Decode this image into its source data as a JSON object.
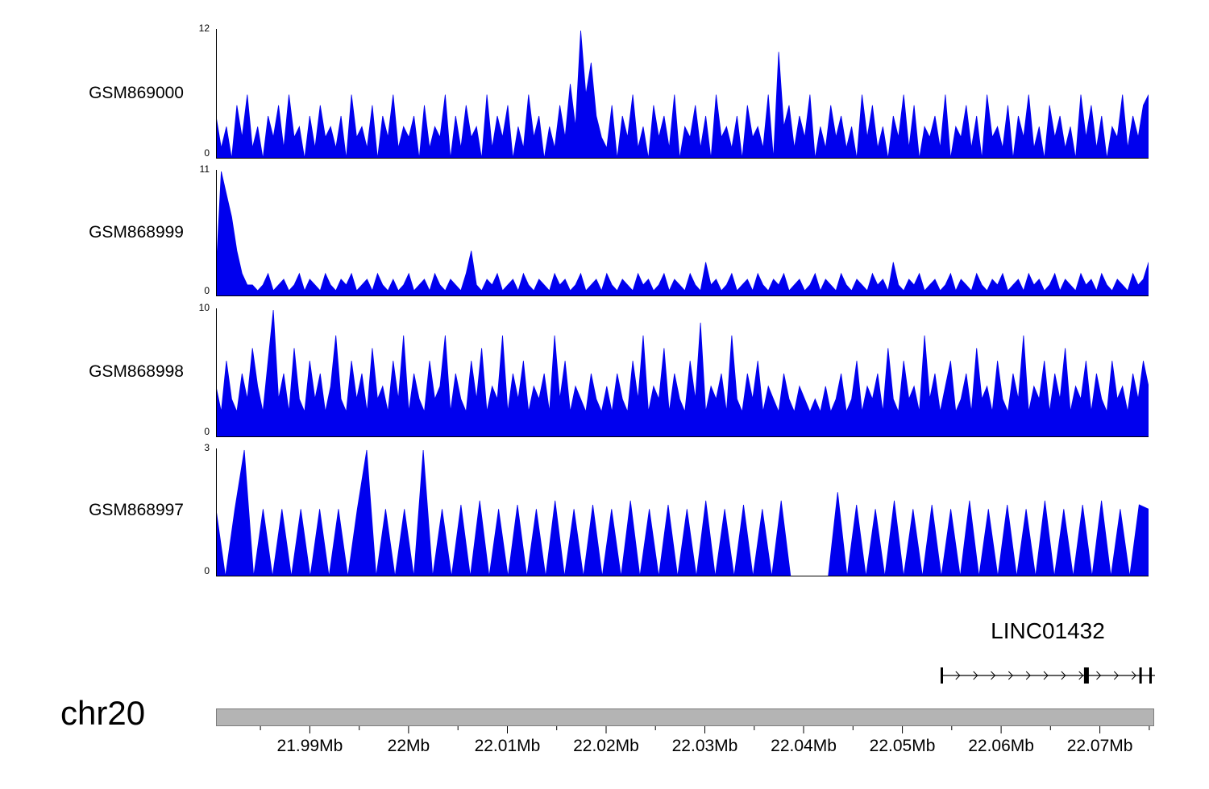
{
  "chart_data": {
    "type": "area",
    "title": "",
    "x_axis_unit": "Mb",
    "x_domain_mb": [
      21.9805,
      22.0755
    ],
    "minor_tick_step_mb": 0.005,
    "fill_color": "#0000ee",
    "axis_color": "#000000",
    "x_ticks": [
      {
        "value": 21.99,
        "label": "21.99Mb"
      },
      {
        "value": 22.0,
        "label": "22Mb"
      },
      {
        "value": 22.01,
        "label": "22.01Mb"
      },
      {
        "value": 22.02,
        "label": "22.02Mb"
      },
      {
        "value": 22.03,
        "label": "22.03Mb"
      },
      {
        "value": 22.04,
        "label": "22.04Mb"
      },
      {
        "value": 22.05,
        "label": "22.05Mb"
      },
      {
        "value": 22.06,
        "label": "22.06Mb"
      },
      {
        "value": 22.07,
        "label": "22.07Mb"
      }
    ],
    "tracks": [
      {
        "name": "GSM869000",
        "ymin": 0,
        "ymax": 12,
        "values": [
          4,
          1,
          3,
          0,
          5,
          2,
          6,
          1,
          3,
          0,
          4,
          2,
          5,
          1,
          6,
          2,
          3,
          0,
          4,
          1,
          5,
          2,
          3,
          1,
          4,
          0,
          6,
          2,
          3,
          1,
          5,
          0,
          4,
          2,
          6,
          1,
          3,
          2,
          4,
          0,
          5,
          1,
          3,
          2,
          6,
          0,
          4,
          1,
          5,
          2,
          3,
          0,
          6,
          1,
          4,
          2,
          5,
          0,
          3,
          1,
          6,
          2,
          4,
          0,
          3,
          1,
          5,
          2,
          7,
          3,
          12,
          6,
          9,
          4,
          2,
          1,
          5,
          0,
          4,
          2,
          6,
          1,
          3,
          0,
          5,
          2,
          4,
          1,
          6,
          0,
          3,
          2,
          5,
          1,
          4,
          0,
          6,
          2,
          3,
          1,
          4,
          0,
          5,
          2,
          3,
          1,
          6,
          0,
          10,
          3,
          5,
          1,
          4,
          2,
          6,
          0,
          3,
          1,
          5,
          2,
          4,
          1,
          3,
          0,
          6,
          2,
          5,
          1,
          3,
          0,
          4,
          2,
          6,
          1,
          5,
          0,
          3,
          2,
          4,
          1,
          6,
          0,
          3,
          2,
          5,
          1,
          4,
          0,
          6,
          2,
          3,
          1,
          5,
          0,
          4,
          2,
          6,
          1,
          3,
          0,
          5,
          2,
          4,
          1,
          3,
          0,
          6,
          2,
          5,
          1,
          4,
          0,
          3,
          2,
          6,
          1,
          4,
          2,
          5,
          6
        ]
      },
      {
        "name": "GSM868999",
        "ymin": 0,
        "ymax": 11,
        "values": [
          2,
          11,
          9,
          7,
          4,
          2,
          1,
          1,
          0.5,
          1,
          2,
          0.5,
          1,
          1.5,
          0.5,
          1,
          2,
          0.5,
          1.5,
          1,
          0.5,
          2,
          1,
          0.5,
          1.5,
          1,
          2,
          0.5,
          1,
          1.5,
          0.5,
          2,
          1,
          0.5,
          1.5,
          0.5,
          1,
          2,
          0.5,
          1,
          1.5,
          0.5,
          2,
          1,
          0.5,
          1.5,
          1,
          0.5,
          2,
          4,
          1,
          0.5,
          1.5,
          1,
          2,
          0.5,
          1,
          1.5,
          0.5,
          2,
          1,
          0.5,
          1.5,
          1,
          0.5,
          2,
          1,
          1.5,
          0.5,
          1,
          2,
          0.5,
          1,
          1.5,
          0.5,
          2,
          1,
          0.5,
          1.5,
          1,
          0.5,
          2,
          1,
          1.5,
          0.5,
          1,
          2,
          0.5,
          1.5,
          1,
          0.5,
          2,
          1,
          0.5,
          3,
          1,
          1.5,
          0.5,
          1,
          2,
          0.5,
          1,
          1.5,
          0.5,
          2,
          1,
          0.5,
          1.5,
          1,
          2,
          0.5,
          1,
          1.5,
          0.5,
          1,
          2,
          0.5,
          1.5,
          1,
          0.5,
          2,
          1,
          0.5,
          1.5,
          1,
          0.5,
          2,
          1,
          1.5,
          0.5,
          3,
          1,
          0.5,
          1.5,
          1,
          2,
          0.5,
          1,
          1.5,
          0.5,
          1,
          2,
          0.5,
          1.5,
          1,
          0.5,
          2,
          1,
          0.5,
          1.5,
          1,
          2,
          0.5,
          1,
          1.5,
          0.5,
          2,
          1,
          1.5,
          0.5,
          1,
          2,
          0.5,
          1.5,
          1,
          0.5,
          2,
          1,
          1.5,
          0.5,
          2,
          1,
          0.5,
          1.5,
          1,
          0.5,
          2,
          1,
          1.5,
          3
        ]
      },
      {
        "name": "GSM868998",
        "ymin": 0,
        "ymax": 10,
        "values": [
          4,
          2,
          6,
          3,
          2,
          5,
          3,
          7,
          4,
          2,
          6,
          10,
          3,
          5,
          2,
          7,
          3,
          2,
          6,
          3,
          5,
          2,
          4,
          8,
          3,
          2,
          6,
          3,
          5,
          2,
          7,
          3,
          4,
          2,
          6,
          3,
          8,
          2,
          5,
          3,
          2,
          6,
          3,
          4,
          8,
          2,
          5,
          3,
          2,
          6,
          3,
          7,
          2,
          4,
          3,
          8,
          2,
          5,
          3,
          6,
          2,
          4,
          3,
          5,
          2,
          8,
          3,
          6,
          2,
          4,
          3,
          2,
          5,
          3,
          2,
          4,
          2,
          5,
          3,
          2,
          6,
          3,
          8,
          2,
          4,
          3,
          7,
          2,
          5,
          3,
          2,
          6,
          3,
          9,
          2,
          4,
          3,
          5,
          2,
          8,
          3,
          2,
          5,
          3,
          6,
          2,
          4,
          3,
          2,
          5,
          3,
          2,
          4,
          3,
          2,
          3,
          2,
          4,
          2,
          3,
          5,
          2,
          3,
          6,
          2,
          4,
          3,
          5,
          2,
          7,
          3,
          2,
          6,
          3,
          4,
          2,
          8,
          3,
          5,
          2,
          4,
          6,
          2,
          3,
          5,
          2,
          7,
          3,
          4,
          2,
          6,
          3,
          2,
          5,
          3,
          8,
          2,
          4,
          3,
          6,
          2,
          5,
          3,
          7,
          2,
          4,
          3,
          6,
          2,
          5,
          3,
          2,
          6,
          3,
          4,
          2,
          5,
          3,
          6,
          4
        ]
      },
      {
        "name": "GSM868997",
        "ymin": 0,
        "ymax": 3,
        "values": [
          1.6,
          0,
          1.6,
          3,
          0,
          1.6,
          0,
          1.6,
          0,
          1.6,
          0,
          1.6,
          0,
          1.6,
          0,
          1.6,
          3,
          0,
          1.6,
          0,
          1.6,
          0,
          3,
          0,
          1.6,
          0,
          1.7,
          0,
          1.8,
          0,
          1.6,
          0,
          1.7,
          0,
          1.6,
          0,
          1.8,
          0,
          1.6,
          0,
          1.7,
          0,
          1.6,
          0,
          1.8,
          0,
          1.6,
          0,
          1.7,
          0,
          1.6,
          0,
          1.8,
          0,
          1.6,
          0,
          1.7,
          0,
          1.6,
          0,
          1.8,
          0,
          0,
          0,
          0,
          0,
          2,
          0,
          1.7,
          0,
          1.6,
          0,
          1.8,
          0,
          1.6,
          0,
          1.7,
          0,
          1.6,
          0,
          1.8,
          0,
          1.6,
          0,
          1.7,
          0,
          1.6,
          0,
          1.8,
          0,
          1.6,
          0,
          1.7,
          0,
          1.8,
          0,
          1.6,
          0,
          1.7,
          1.6
        ]
      }
    ],
    "gene_track": {
      "name": "LINC01432",
      "start_mb": 22.054,
      "end_mb": 22.075,
      "strand": "+",
      "arrow_count": 11,
      "exons": [
        {
          "frac": 0.0,
          "w": 3
        },
        {
          "frac": 0.695,
          "w": 6
        },
        {
          "frac": 0.952,
          "w": 3
        },
        {
          "frac": 1.0,
          "w": 3
        }
      ]
    },
    "chromosome": {
      "label": "chr20",
      "ideogram_color": "#b4b4b4",
      "ideogram_border": "#7d7d7d"
    }
  }
}
